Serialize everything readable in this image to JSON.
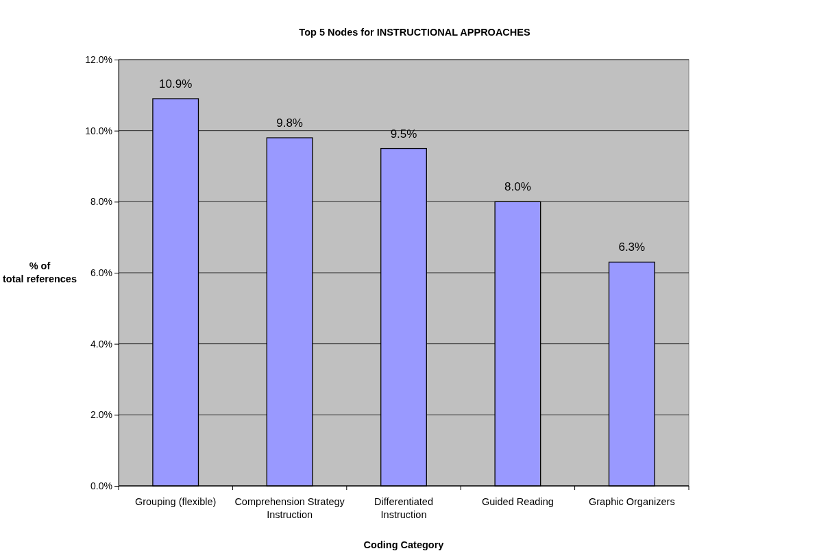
{
  "chart_data": {
    "type": "bar",
    "title": "Top 5 Nodes for INSTRUCTIONAL APPROACHES",
    "xlabel": "Coding Category",
    "ylabel": "% of total references",
    "categories": [
      "Grouping (flexible)",
      "Comprehension Strategy Instruction",
      "Differentiated Instruction",
      "Guided Reading",
      "Graphic Organizers"
    ],
    "values": [
      10.9,
      9.8,
      9.5,
      8.0,
      6.3
    ],
    "value_labels": [
      "10.9%",
      "9.8%",
      "9.5%",
      "8.0%",
      "6.3%"
    ],
    "color": "#9999ff",
    "ylim": [
      0,
      12
    ],
    "yticks": [
      {
        "value": 0,
        "label": "0.0%"
      },
      {
        "value": 2,
        "label": "2.0%"
      },
      {
        "value": 4,
        "label": "4.0%"
      },
      {
        "value": 6,
        "label": "6.0%"
      },
      {
        "value": 8,
        "label": "8.0%"
      },
      {
        "value": 10,
        "label": "10.0%"
      },
      {
        "value": 12,
        "label": "12.0%"
      }
    ],
    "grid": "y"
  }
}
